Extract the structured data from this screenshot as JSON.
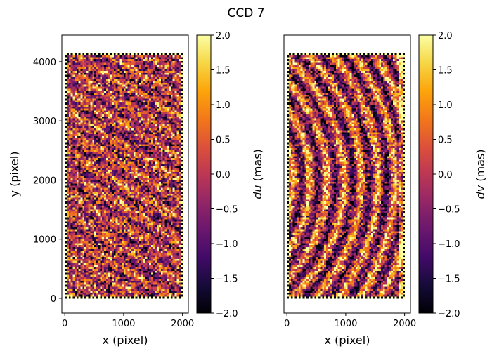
{
  "chart_data": {
    "type": "heatmap",
    "title": "CCD 7",
    "panels": [
      {
        "name": "du",
        "xlabel": "x (pixel)",
        "ylabel": "y (pixel)",
        "colorbar_label": "du (mas)",
        "colorbar_symbol": "du",
        "colorbar_unit": "(mas)",
        "xlim": [
          -50,
          2100
        ],
        "ylim": [
          -250,
          4450
        ],
        "data_extent_x": [
          0,
          2000
        ],
        "data_extent_y": [
          0,
          4150
        ],
        "clim": [
          -2.0,
          2.0
        ],
        "colormap": "inferno",
        "pattern": "weak diagonal streaks, mostly noise",
        "xticks": [
          0,
          1000,
          2000
        ],
        "xtick_labels": [
          "0",
          "1000",
          "2000"
        ],
        "yticks": [
          0,
          1000,
          2000,
          3000,
          4000
        ],
        "ytick_labels": [
          "0",
          "1000",
          "2000",
          "3000",
          "4000"
        ]
      },
      {
        "name": "dv",
        "xlabel": "x (pixel)",
        "ylabel": "",
        "colorbar_label": "dv (mas)",
        "colorbar_symbol": "dv",
        "colorbar_unit": "(mas)",
        "xlim": [
          -50,
          2100
        ],
        "ylim": [
          -250,
          4450
        ],
        "data_extent_x": [
          0,
          2000
        ],
        "data_extent_y": [
          0,
          4150
        ],
        "clim": [
          -2.0,
          2.0
        ],
        "colormap": "inferno",
        "pattern": "concentric arcs (tree rings) centred left of the sensor",
        "xticks": [
          0,
          1000,
          2000
        ],
        "xtick_labels": [
          "0",
          "1000",
          "2000"
        ],
        "yticks": [],
        "ytick_labels": []
      }
    ],
    "colorbar_ticks": [
      -2.0,
      -1.5,
      -1.0,
      -0.5,
      0.0,
      0.5,
      1.0,
      1.5,
      2.0
    ],
    "colorbar_tick_labels": [
      "−2.0",
      "−1.5",
      "−1.0",
      "−0.5",
      "0.0",
      "0.5",
      "1.0",
      "1.5",
      "2.0"
    ]
  }
}
